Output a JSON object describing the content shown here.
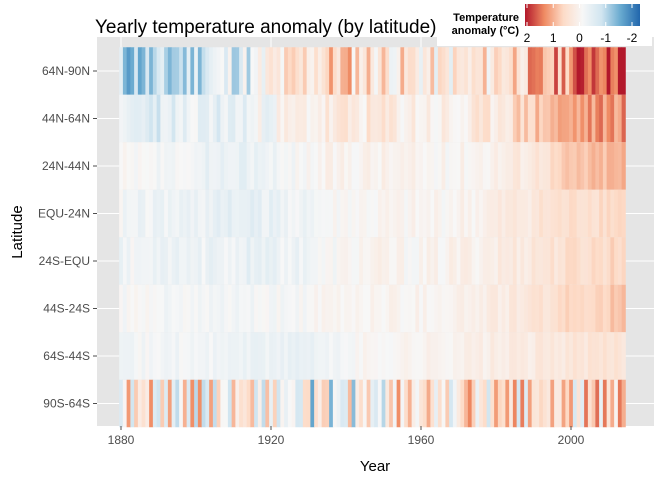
{
  "chart_data": {
    "type": "heatmap",
    "title": "Yearly temperature anomaly (by latitude)",
    "xlabel": "Year",
    "ylabel": "Latitude",
    "x_ticks": [
      1880,
      1920,
      1960,
      2000
    ],
    "xlim": [
      1880,
      2014
    ],
    "y_categories": [
      "64N-90N",
      "44N-64N",
      "24N-44N",
      "EQU-24N",
      "24S-EQU",
      "44S-24S",
      "64S-44S",
      "90S-64S"
    ],
    "grid": true,
    "background": "#e5e5e5",
    "legend": {
      "title": "Temperature anomaly (°C)",
      "placement": "top-right",
      "labels": [
        "2",
        "1",
        "0",
        "-1",
        "-2"
      ],
      "range": [
        2,
        -2
      ],
      "colors": [
        "#b2182b",
        "#ef8a62",
        "#fddbc7",
        "#f7f7f7",
        "#d1e5f0",
        "#67a9cf",
        "#2166ac"
      ]
    },
    "series": [
      {
        "name": "64N-90N",
        "anchors": [
          [
            1880,
            -0.9
          ],
          [
            1890,
            -1.0
          ],
          [
            1897,
            -0.8
          ],
          [
            1905,
            -0.3
          ],
          [
            1915,
            -0.4
          ],
          [
            1920,
            0.1
          ],
          [
            1930,
            0.5
          ],
          [
            1938,
            0.8
          ],
          [
            1945,
            0.6
          ],
          [
            1955,
            0.4
          ],
          [
            1965,
            0.2
          ],
          [
            1975,
            0.3
          ],
          [
            1985,
            0.8
          ],
          [
            1995,
            1.0
          ],
          [
            2005,
            1.8
          ],
          [
            2014,
            1.9
          ]
        ],
        "amplitude": 0.7,
        "seed": 11
      },
      {
        "name": "44N-64N",
        "anchors": [
          [
            1880,
            -0.4
          ],
          [
            1890,
            -0.4
          ],
          [
            1900,
            -0.3
          ],
          [
            1910,
            -0.3
          ],
          [
            1920,
            0.0
          ],
          [
            1930,
            0.2
          ],
          [
            1940,
            0.3
          ],
          [
            1950,
            0.3
          ],
          [
            1960,
            0.2
          ],
          [
            1970,
            0.1
          ],
          [
            1980,
            0.4
          ],
          [
            1990,
            0.8
          ],
          [
            2000,
            1.1
          ],
          [
            2014,
            1.3
          ]
        ],
        "amplitude": 0.35,
        "seed": 23
      },
      {
        "name": "24N-44N",
        "anchors": [
          [
            1880,
            -0.05
          ],
          [
            1900,
            -0.15
          ],
          [
            1910,
            -0.3
          ],
          [
            1920,
            -0.1
          ],
          [
            1935,
            0.1
          ],
          [
            1950,
            0.15
          ],
          [
            1965,
            0.05
          ],
          [
            1980,
            0.2
          ],
          [
            1990,
            0.4
          ],
          [
            2000,
            0.8
          ],
          [
            2014,
            1.0
          ]
        ],
        "amplitude": 0.18,
        "seed": 37
      },
      {
        "name": "EQU-24N",
        "anchors": [
          [
            1880,
            -0.1
          ],
          [
            1900,
            -0.2
          ],
          [
            1910,
            -0.3
          ],
          [
            1925,
            -0.2
          ],
          [
            1940,
            0.05
          ],
          [
            1960,
            0.05
          ],
          [
            1975,
            0.15
          ],
          [
            1990,
            0.4
          ],
          [
            2000,
            0.55
          ],
          [
            2014,
            0.7
          ]
        ],
        "amplitude": 0.18,
        "seed": 41
      },
      {
        "name": "24S-EQU",
        "anchors": [
          [
            1880,
            -0.1
          ],
          [
            1900,
            -0.15
          ],
          [
            1915,
            -0.25
          ],
          [
            1930,
            -0.1
          ],
          [
            1945,
            0.1
          ],
          [
            1960,
            0.05
          ],
          [
            1975,
            0.2
          ],
          [
            1990,
            0.4
          ],
          [
            2000,
            0.55
          ],
          [
            2014,
            0.7
          ]
        ],
        "amplitude": 0.18,
        "seed": 53
      },
      {
        "name": "44S-24S",
        "anchors": [
          [
            1880,
            0.0
          ],
          [
            1900,
            -0.1
          ],
          [
            1915,
            -0.1
          ],
          [
            1930,
            0.0
          ],
          [
            1945,
            0.1
          ],
          [
            1960,
            0.1
          ],
          [
            1975,
            0.2
          ],
          [
            1990,
            0.4
          ],
          [
            2000,
            0.65
          ],
          [
            2014,
            0.85
          ]
        ],
        "amplitude": 0.15,
        "seed": 61
      },
      {
        "name": "64S-44S",
        "anchors": [
          [
            1880,
            -0.05
          ],
          [
            1900,
            -0.1
          ],
          [
            1915,
            -0.2
          ],
          [
            1930,
            -0.25
          ],
          [
            1945,
            0.05
          ],
          [
            1960,
            0.1
          ],
          [
            1975,
            0.2
          ],
          [
            1990,
            0.3
          ],
          [
            2000,
            0.4
          ],
          [
            2014,
            0.45
          ]
        ],
        "amplitude": 0.13,
        "seed": 71
      },
      {
        "name": "90S-64S",
        "anchors": [
          [
            1880,
            0.4
          ],
          [
            1895,
            0.3
          ],
          [
            1903,
            0.2
          ],
          [
            1910,
            0.3
          ],
          [
            1920,
            0.1
          ],
          [
            1930,
            -0.4
          ],
          [
            1940,
            -0.2
          ],
          [
            1955,
            0.3
          ],
          [
            1965,
            0.2
          ],
          [
            1975,
            0.4
          ],
          [
            1985,
            0.3
          ],
          [
            1995,
            0.5
          ],
          [
            2005,
            0.4
          ],
          [
            2014,
            0.6
          ]
        ],
        "amplitude": 1.1,
        "seed": 89
      }
    ]
  }
}
